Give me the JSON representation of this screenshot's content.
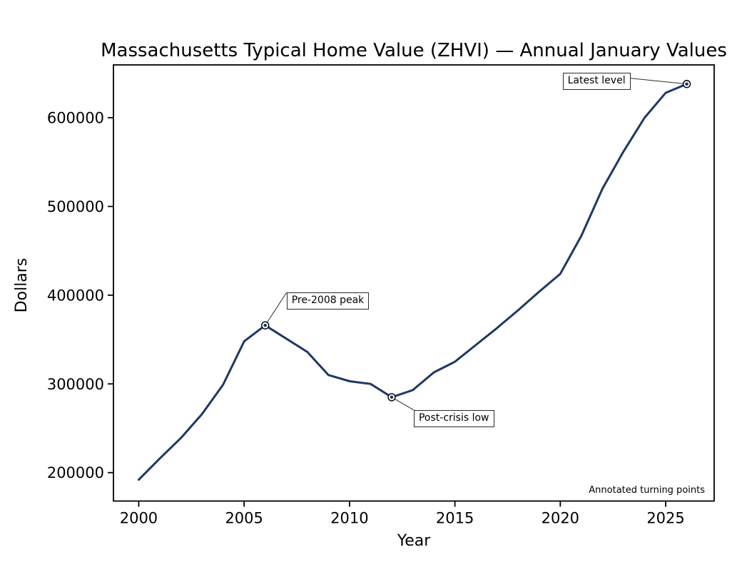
{
  "figure": {
    "background": "#ffffff",
    "frame_color": "#000000",
    "text_color": "#000000"
  },
  "chart_data": {
    "type": "line",
    "title": "Massachusetts Typical Home Value (ZHVI) — Annual January Values",
    "xlabel": "Year",
    "ylabel": "Dollars",
    "corner_note": "Annotated turning points",
    "line_color": "#1e3864",
    "line_width": 3,
    "marker_edge_color": "#000000",
    "grid": false,
    "legend": "none",
    "xlim": [
      1998.8,
      2027.3
    ],
    "ylim": [
      168000,
      659500
    ],
    "xticks": [
      2000,
      2005,
      2010,
      2015,
      2020,
      2025
    ],
    "yticks": [
      200000,
      300000,
      400000,
      500000,
      600000
    ],
    "x": [
      2000,
      2001,
      2002,
      2003,
      2004,
      2005,
      2006,
      2007,
      2008,
      2009,
      2010,
      2011,
      2012,
      2013,
      2014,
      2015,
      2016,
      2017,
      2018,
      2019,
      2020,
      2021,
      2022,
      2023,
      2024,
      2025,
      2026
    ],
    "values": [
      192000,
      216000,
      239000,
      266000,
      299000,
      348000,
      366000,
      351000,
      336000,
      310000,
      303000,
      300000,
      285000,
      293000,
      313000,
      325000,
      344000,
      363000,
      383000,
      404000,
      424000,
      467000,
      520000,
      562000,
      600000,
      628000,
      638000
    ],
    "annotations": [
      {
        "label": "Pre-2008 peak",
        "year": 2006,
        "value": 366000,
        "box_dx": 30,
        "box_dy": -46,
        "connect": "box-top-left"
      },
      {
        "label": "Post-crisis low",
        "year": 2012,
        "value": 285000,
        "box_dx": 31,
        "box_dy": 18,
        "connect": "box-top-left"
      },
      {
        "label": "Latest level",
        "year": 2026,
        "value": 638000,
        "box_dx": -174,
        "box_dy": -16,
        "connect": "box-right"
      }
    ]
  }
}
